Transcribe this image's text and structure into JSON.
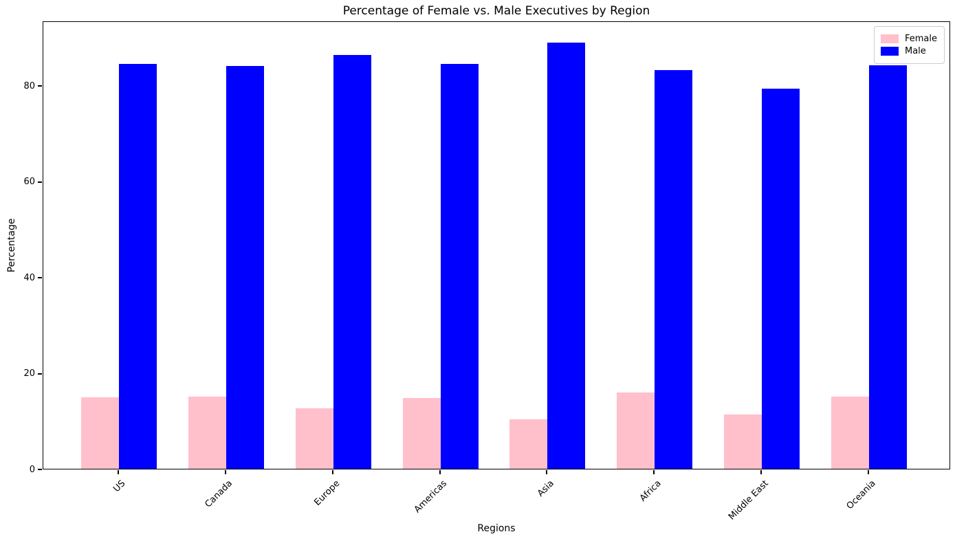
{
  "chart_data": {
    "type": "bar",
    "title": "Percentage of Female vs. Male Executives by Region",
    "xlabel": "Regions",
    "ylabel": "Percentage",
    "categories": [
      "US",
      "Canada",
      "Europe",
      "Americas",
      "Asia",
      "Africa",
      "Middle East",
      "Oceania"
    ],
    "series": [
      {
        "name": "Female",
        "color": "#FFC0CB",
        "values": [
          14.9,
          15.0,
          12.6,
          14.7,
          10.3,
          15.9,
          11.4,
          15.1
        ]
      },
      {
        "name": "Male",
        "color": "#0000FF",
        "values": [
          84.5,
          84.1,
          86.3,
          84.5,
          88.9,
          83.2,
          79.3,
          84.2
        ]
      }
    ],
    "yticks": [
      0,
      20,
      40,
      60,
      80
    ],
    "ylim": [
      0,
      93.5
    ],
    "grid": false,
    "legend_position": "upper right",
    "bar_width_ratio": 0.35,
    "background": "#ffffff"
  }
}
